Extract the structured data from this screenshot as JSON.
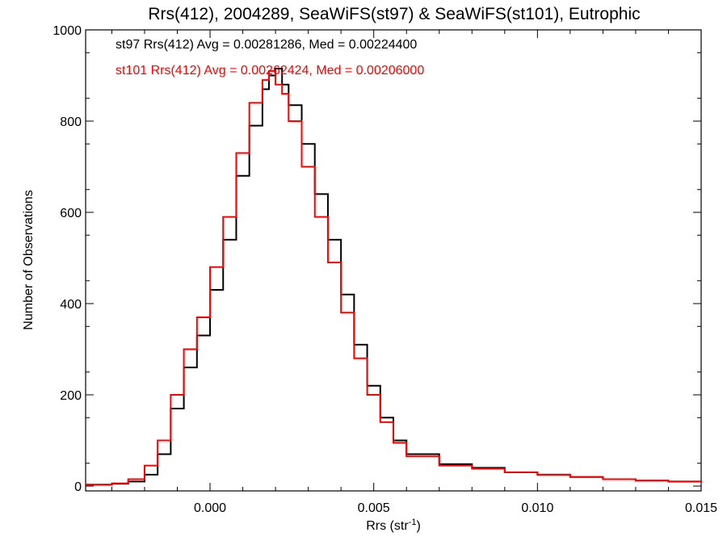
{
  "chart_data": {
    "type": "line",
    "title": "Rrs(412), 2004289, SeaWiFS(st97) & SeaWiFS(st101), Eutrophic",
    "xlabel": "Rrs (str",
    "xlabel_sup": "-1",
    "xlabel_close": ")",
    "ylabel": "Number of Observations",
    "xlim": [
      -0.0038,
      0.015
    ],
    "ylim": [
      0,
      1000
    ],
    "xticks": [
      0.0,
      0.005,
      0.01,
      0.015
    ],
    "xtick_labels": [
      "0.000",
      "0.005",
      "0.010",
      "0.015"
    ],
    "yticks": [
      0,
      200,
      400,
      600,
      800,
      1000
    ],
    "ytick_labels": [
      "0",
      "200",
      "400",
      "600",
      "800",
      "1000"
    ],
    "grid": false,
    "series": [
      {
        "name": "st97",
        "color": "#000000",
        "annotation": "st97 Rrs(412) Avg = 0.00281286, Med = 0.00224400",
        "x": [
          -0.0038,
          -0.003,
          -0.0025,
          -0.002,
          -0.0016,
          -0.0012,
          -0.0008,
          -0.0004,
          0.0,
          0.0004,
          0.0008,
          0.0012,
          0.0016,
          0.0018,
          0.002,
          0.0022,
          0.0024,
          0.0028,
          0.0032,
          0.0036,
          0.004,
          0.0044,
          0.0048,
          0.0052,
          0.0056,
          0.006,
          0.007,
          0.008,
          0.009,
          0.01,
          0.011,
          0.012,
          0.013,
          0.014,
          0.015
        ],
        "y": [
          3,
          5,
          10,
          25,
          70,
          170,
          260,
          330,
          430,
          540,
          680,
          790,
          870,
          900,
          915,
          880,
          835,
          750,
          640,
          540,
          420,
          310,
          220,
          150,
          100,
          70,
          48,
          40,
          30,
          25,
          20,
          15,
          12,
          10,
          8
        ]
      },
      {
        "name": "st101",
        "color": "#ff0000",
        "annotation": "st101 Rrs(412) Avg = 0.00262424, Med = 0.00206000",
        "x": [
          -0.0038,
          -0.003,
          -0.0025,
          -0.002,
          -0.0016,
          -0.0012,
          -0.0008,
          -0.0004,
          0.0,
          0.0004,
          0.0008,
          0.0012,
          0.0016,
          0.0018,
          0.002,
          0.0022,
          0.0024,
          0.0028,
          0.0032,
          0.0036,
          0.004,
          0.0044,
          0.0048,
          0.0052,
          0.0056,
          0.006,
          0.007,
          0.008,
          0.009,
          0.01,
          0.011,
          0.012,
          0.013,
          0.014,
          0.015
        ],
        "y": [
          3,
          6,
          15,
          45,
          100,
          200,
          300,
          370,
          480,
          590,
          730,
          840,
          890,
          910,
          880,
          860,
          800,
          700,
          590,
          490,
          380,
          280,
          200,
          140,
          95,
          65,
          45,
          38,
          30,
          25,
          20,
          15,
          12,
          10,
          8
        ]
      }
    ]
  }
}
